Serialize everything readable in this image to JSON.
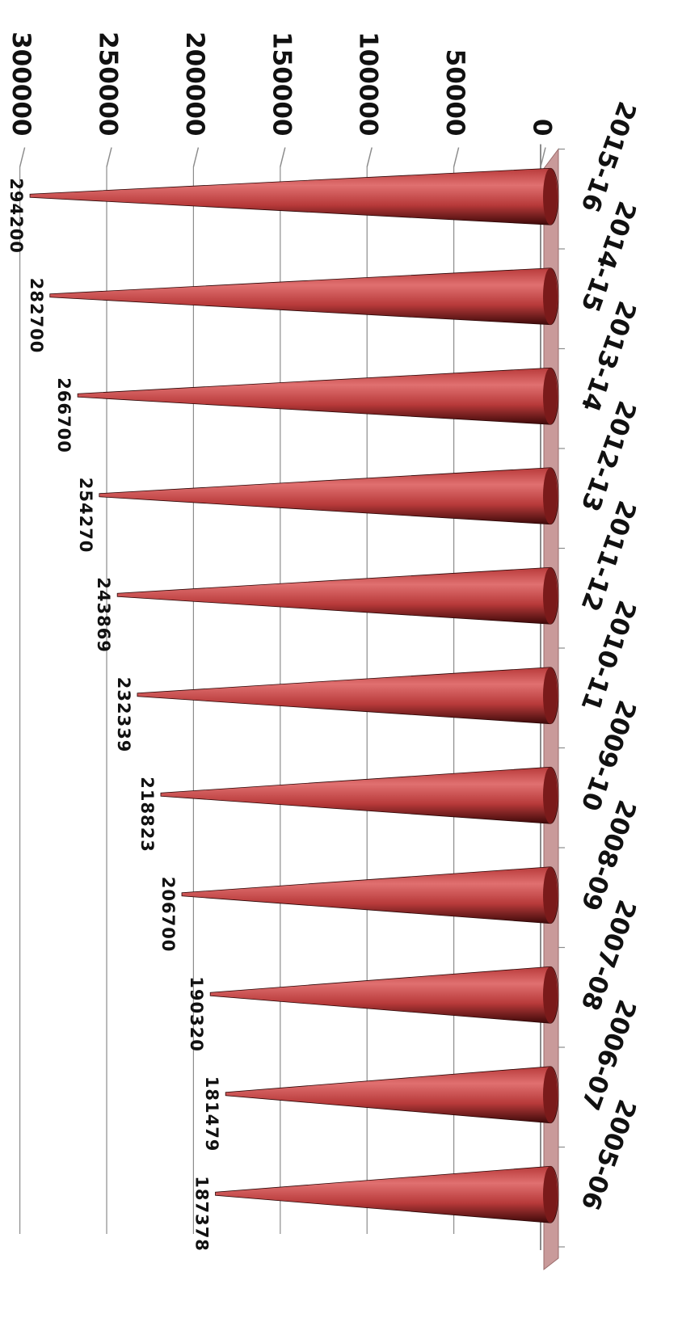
{
  "chart_data": {
    "type": "bar",
    "bar_shape": "cone",
    "orientation": "rotated-180",
    "categories": [
      "2005-06",
      "2006-07",
      "2007-08",
      "2008-09",
      "2009-10",
      "2010-11",
      "2011-12",
      "2012-13",
      "2013-14",
      "2014-15",
      "2015-16"
    ],
    "values": [
      187378,
      181479,
      190320,
      206700,
      218823,
      232339,
      243869,
      254270,
      266700,
      282700,
      294200
    ],
    "data_labels": [
      "187378",
      "181479",
      "190320",
      "206700",
      "218823",
      "232339",
      "243869",
      "254270",
      "266700",
      "282700",
      "294200"
    ],
    "title": "",
    "xlabel": "",
    "ylabel": "",
    "ylim": [
      0,
      300000
    ],
    "ticks": [
      "0",
      "50000",
      "100000",
      "150000",
      "200000",
      "250000",
      "300000"
    ],
    "grid": true,
    "legend": "none",
    "colors": {
      "bar": "#b83a3a",
      "bar_dark": "#3e0909",
      "bar_light": "#e07070",
      "grid": "#8c8c8c",
      "floor": "#c99a9a"
    }
  }
}
